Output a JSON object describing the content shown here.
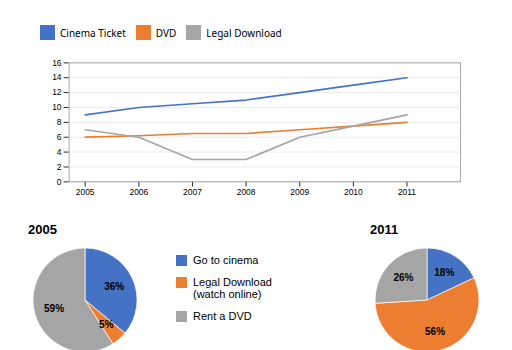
{
  "chart_data": [
    {
      "type": "line",
      "x": [
        2005,
        2006,
        2007,
        2008,
        2009,
        2010,
        2011
      ],
      "series": [
        {
          "name": "Cinema Ticket",
          "color": "#4472C4",
          "values": [
            9,
            10,
            10.5,
            11,
            12,
            13,
            14
          ]
        },
        {
          "name": "DVD",
          "color": "#ED7D31",
          "values": [
            6,
            6.2,
            6.5,
            6.5,
            7,
            7.5,
            8
          ]
        },
        {
          "name": "Legal Download",
          "color": "#A5A5A5",
          "values": [
            7,
            6,
            3,
            3,
            6,
            7.5,
            9
          ]
        }
      ],
      "xlim": [
        2004.7,
        2012.0
      ],
      "xticks": [
        2005,
        2006,
        2007,
        2008,
        2009,
        2010,
        2011
      ],
      "ylim": [
        0,
        16
      ],
      "yticks": [
        0,
        2,
        4,
        6,
        8,
        10,
        12,
        14,
        16
      ],
      "grid": true,
      "legend": "top"
    },
    {
      "type": "pie",
      "title": "2005",
      "categories": [
        "Go to cinema",
        "Legal Download\n(watch online)",
        "Rent a DVD"
      ],
      "values": [
        36,
        5,
        59
      ],
      "value_labels": [
        "36%",
        "5%",
        "59%"
      ],
      "colors": [
        "#4472C4",
        "#ED7D31",
        "#A5A5A5"
      ],
      "data_labels": true,
      "legend": "right"
    },
    {
      "type": "pie",
      "title": "2011",
      "categories": [
        "Go to cinema",
        "Legal Download\n(watch online)",
        "Rent a DVD"
      ],
      "values": [
        18,
        56,
        26
      ],
      "value_labels": [
        "18%",
        "56%",
        "26%"
      ],
      "colors": [
        "#4472C4",
        "#ED7D31",
        "#A5A5A5"
      ],
      "data_labels": true
    }
  ]
}
